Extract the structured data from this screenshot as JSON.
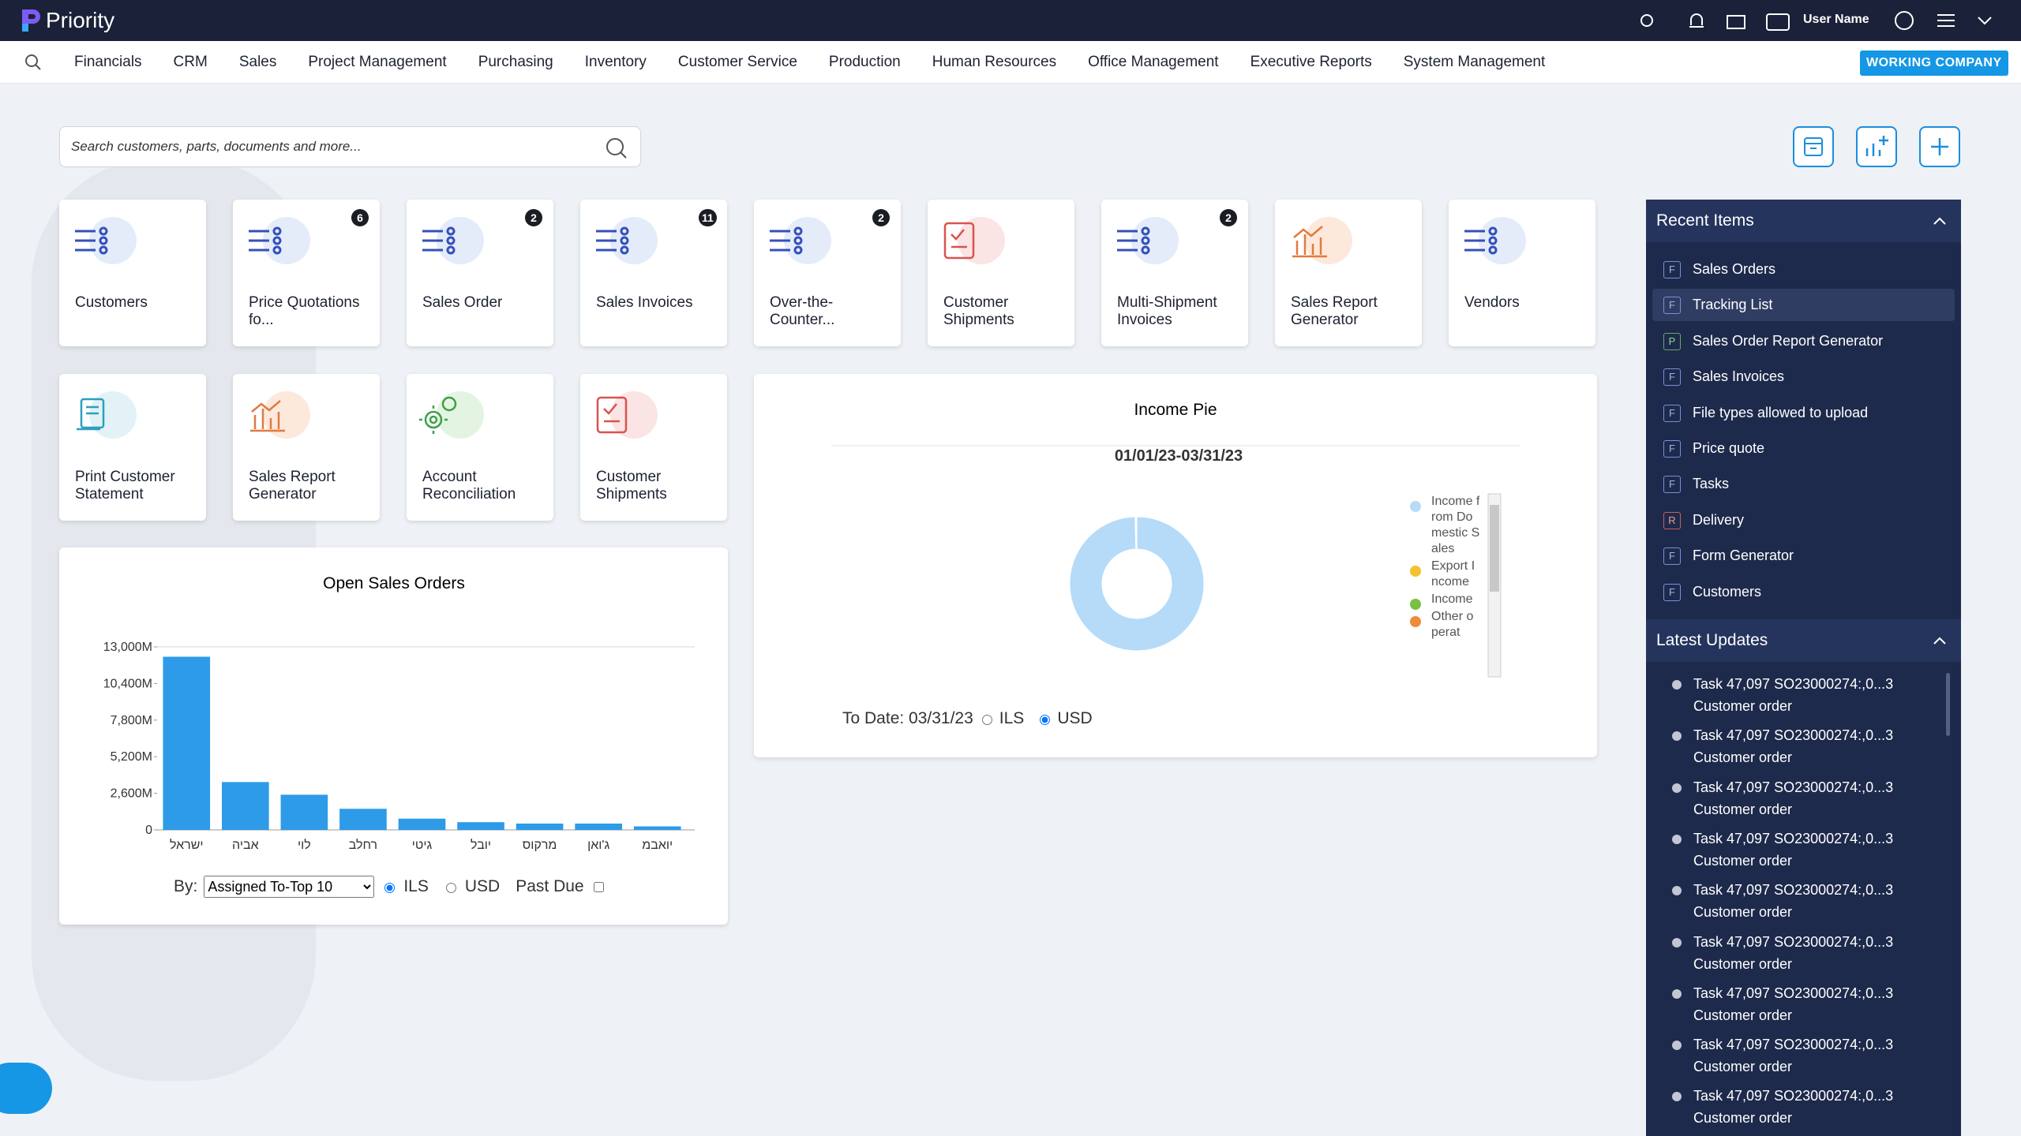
{
  "header": {
    "logo": "Priority",
    "user": "User Name"
  },
  "nav": {
    "items": [
      "Financials",
      "CRM",
      "Sales",
      "Project Management",
      "Purchasing",
      "Inventory",
      "Customer Service",
      "Production",
      "Human Resources",
      "Office Management",
      "Executive Reports",
      "System Management"
    ],
    "company": "WORKING COMPANY"
  },
  "search": {
    "placeholder": "Search customers, parts, documents and more..."
  },
  "tiles": [
    {
      "label": "Customers"
    },
    {
      "label": "Price Quotations fo...",
      "badge": 6
    },
    {
      "label": "Sales Order",
      "badge": 2
    },
    {
      "label": "Sales Invoices",
      "badge": 11
    },
    {
      "label": "Over-the-Counter...",
      "badge": 2
    },
    {
      "label": "Customer Shipments"
    },
    {
      "label": "Multi-Shipment Invoices",
      "badge": 2
    },
    {
      "label": "Sales Report Generator"
    },
    {
      "label": "Vendors"
    },
    {
      "label": "Print Customer Statement"
    },
    {
      "label": "Sales Report Generator"
    },
    {
      "label": "Account Reconciliation"
    },
    {
      "label": "Customer Shipments"
    }
  ],
  "bar_chart": {
    "type": "bar",
    "title": "Open Sales Orders",
    "categories": [
      "ישראל",
      "אביה",
      "לוי",
      "רחלב",
      "גיטי",
      "יובל",
      "מרקוס",
      "ג'ואן",
      "יואבמ"
    ],
    "values": [
      12300,
      3400,
      2500,
      1500,
      800,
      550,
      450,
      450,
      250
    ],
    "color": "#2d9be8",
    "ylim": [
      0,
      13000
    ],
    "yticks": [
      0,
      {
        "value": 2600,
        "label": "2,600M"
      },
      {
        "value": 5200,
        "label": "5,200M"
      },
      {
        "value": 7800,
        "label": "7,800M"
      },
      {
        "value": 10400,
        "label": "10,400M"
      },
      {
        "value": 13000,
        "label": "13,000M"
      }
    ],
    "grid": false,
    "filter": {
      "by": "By:",
      "select": "Assigned To-Top 10",
      "ils": "ILS",
      "usd": "USD",
      "past_due": "Past Due"
    }
  },
  "pie_chart": {
    "type": "pie",
    "title": "Income Pie",
    "subtitle": "01/01/23-03/31/23",
    "categories": [
      "Income from Domestic Sales",
      "Export Income",
      "Income",
      "Other operat"
    ],
    "values": [
      99.6,
      0.2,
      0.1,
      0.1
    ],
    "colors": [
      "#b5dbf8",
      "#f3c230",
      "#79c043",
      "#f08a3c"
    ],
    "to_date": "To Date: 03/31/23",
    "ils": "ILS",
    "usd": "USD"
  },
  "recent_items": {
    "title": "Recent Items",
    "items": [
      {
        "tag": "F",
        "label": "Sales Orders"
      },
      {
        "tag": "F",
        "label": "Tracking List"
      },
      {
        "tag": "P",
        "label": "Sales Order Report Generator"
      },
      {
        "tag": "F",
        "label": "Sales Invoices"
      },
      {
        "tag": "F",
        "label": "File types allowed to upload"
      },
      {
        "tag": "F",
        "label": "Price quote"
      },
      {
        "tag": "F",
        "label": "Tasks"
      },
      {
        "tag": "R",
        "label": "Delivery"
      },
      {
        "tag": "F",
        "label": "Form Generator"
      },
      {
        "tag": "F",
        "label": "Customers"
      }
    ]
  },
  "latest_updates": {
    "title": "Latest Updates",
    "items": [
      {
        "line1": "Task 47,097 SO23000274:,0...3",
        "line2": "Customer order"
      },
      {
        "line1": "Task 47,097 SO23000274:,0...3",
        "line2": "Customer order"
      },
      {
        "line1": "Task 47,097 SO23000274:,0...3",
        "line2": "Customer order"
      },
      {
        "line1": "Task 47,097 SO23000274:,0...3",
        "line2": "Customer order"
      },
      {
        "line1": "Task 47,097 SO23000274:,0...3",
        "line2": "Customer order"
      },
      {
        "line1": "Task 47,097 SO23000274:,0...3",
        "line2": "Customer order"
      },
      {
        "line1": "Task 47,097 SO23000274:,0...3",
        "line2": "Customer order"
      },
      {
        "line1": "Task 47,097 SO23000274:,0...3",
        "line2": "Customer order"
      },
      {
        "line1": "Task 47,097 SO23000274:,0...3",
        "line2": "Customer order"
      }
    ]
  }
}
